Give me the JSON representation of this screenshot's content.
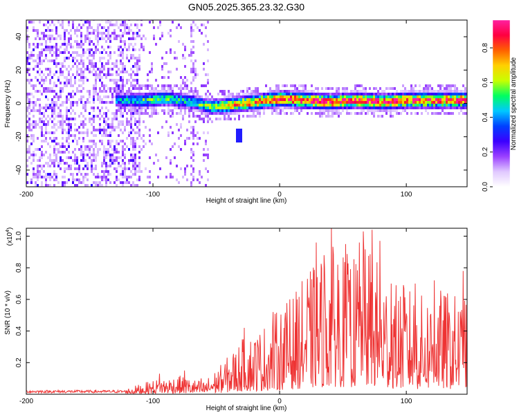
{
  "chart_data": [
    {
      "type": "heatmap",
      "title": "GN05.2025.365.23.32.G30",
      "xlabel": "Height of straight line (km)",
      "ylabel": "Frequency (Hz)",
      "xlim": [
        -200,
        148
      ],
      "ylim": [
        -50,
        50
      ],
      "xticks": [
        -200,
        -100,
        0,
        100
      ],
      "yticks": [
        -40,
        -20,
        0,
        20,
        40
      ],
      "colorbar": {
        "label": "Normalized spectral amplitude",
        "range": [
          0,
          0.96
        ],
        "ticks": [
          0.0,
          0.2,
          0.4,
          0.6,
          0.8
        ],
        "colors": [
          "#ffffff",
          "#e0c8ff",
          "#9a40ff",
          "#3a00ff",
          "#0040ff",
          "#00c8ff",
          "#00ff60",
          "#c8ff00",
          "#ffd000",
          "#ff6000",
          "#ff0040",
          "#ff20a0"
        ]
      },
      "ridge": {
        "description_points_km_hz": [
          [
            -125,
            1
          ],
          [
            -110,
            1
          ],
          [
            -90,
            2
          ],
          [
            -70,
            0
          ],
          [
            -55,
            -3
          ],
          [
            -40,
            -2
          ],
          [
            -20,
            0
          ],
          [
            0,
            2
          ],
          [
            20,
            1
          ],
          [
            40,
            0
          ],
          [
            60,
            1
          ],
          [
            80,
            0
          ],
          [
            100,
            1
          ],
          [
            120,
            1
          ],
          [
            148,
            1
          ]
        ],
        "peak_amplitude_by_km": [
          [
            -125,
            0.45
          ],
          [
            -100,
            0.55
          ],
          [
            -70,
            0.5
          ],
          [
            -50,
            0.65
          ],
          [
            -30,
            0.8
          ],
          [
            0,
            0.9
          ],
          [
            50,
            0.92
          ],
          [
            100,
            0.92
          ],
          [
            148,
            0.9
          ]
        ]
      },
      "noise": {
        "dense_region_km": [
          -200,
          -110
        ],
        "sparse_region_km": [
          -110,
          -60
        ],
        "vertical_streaks_km": [
          -72,
          -60
        ]
      }
    },
    {
      "type": "line",
      "xlabel": "Height of straight line (km)",
      "ylabel": "SNR (10 * v/v)",
      "yscale_label": "(x10",
      "yscale_exp": "4",
      "yscale_close": ")",
      "xlim": [
        -200,
        148
      ],
      "ylim": [
        0,
        1.05
      ],
      "xticks": [
        -200,
        -100,
        0,
        100
      ],
      "yticks": [
        0.2,
        0.4,
        0.6,
        0.8,
        1.0
      ],
      "line_color": "#ee3333",
      "envelope": [
        [
          -200,
          0.02
        ],
        [
          -150,
          0.02
        ],
        [
          -120,
          0.04
        ],
        [
          -100,
          0.09
        ],
        [
          -80,
          0.12
        ],
        [
          -70,
          0.1
        ],
        [
          -60,
          0.08
        ],
        [
          -45,
          0.2
        ],
        [
          -30,
          0.35
        ],
        [
          -15,
          0.42
        ],
        [
          0,
          0.55
        ],
        [
          10,
          0.62
        ],
        [
          20,
          0.75
        ],
        [
          30,
          0.85
        ],
        [
          40,
          0.95
        ],
        [
          50,
          0.9
        ],
        [
          60,
          0.88
        ],
        [
          70,
          0.95
        ],
        [
          80,
          0.82
        ],
        [
          90,
          0.7
        ],
        [
          100,
          0.7
        ],
        [
          110,
          0.62
        ],
        [
          120,
          0.68
        ],
        [
          135,
          0.65
        ],
        [
          148,
          0.6
        ]
      ],
      "peaks": [
        [
          -95,
          0.13
        ],
        [
          -75,
          0.15
        ],
        [
          -62,
          0.1
        ],
        [
          -28,
          0.42
        ],
        [
          -5,
          0.52
        ],
        [
          8,
          0.6
        ],
        [
          22,
          0.73
        ],
        [
          29,
          0.96
        ],
        [
          35,
          0.88
        ],
        [
          41,
          1.05
        ],
        [
          46,
          0.82
        ],
        [
          52,
          0.95
        ],
        [
          55,
          0.72
        ],
        [
          63,
          0.96
        ],
        [
          66,
          1.03
        ],
        [
          73,
          1.04
        ],
        [
          79,
          0.97
        ],
        [
          88,
          0.7
        ],
        [
          98,
          0.67
        ],
        [
          107,
          0.7
        ],
        [
          122,
          0.72
        ],
        [
          145,
          0.78
        ]
      ]
    }
  ]
}
